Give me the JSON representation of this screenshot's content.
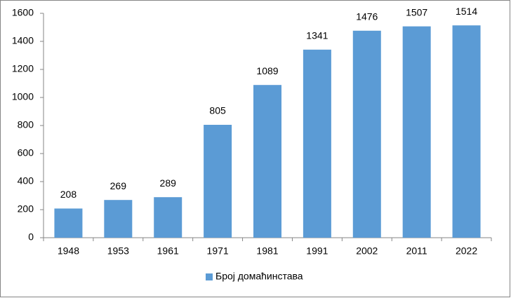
{
  "chart_data": {
    "type": "bar",
    "categories": [
      "1948",
      "1953",
      "1961",
      "1971",
      "1981",
      "1991",
      "2002",
      "2011",
      "2022"
    ],
    "series": [
      {
        "name": "Број домаћинстава",
        "color": "#5b9bd5",
        "values": [
          208,
          269,
          289,
          805,
          1089,
          1341,
          1476,
          1507,
          1514
        ]
      }
    ],
    "ylim": [
      0,
      1600
    ],
    "yticks": [
      0,
      200,
      400,
      600,
      800,
      1000,
      1200,
      1400,
      1600
    ],
    "grid": false,
    "legend": "bottom"
  }
}
